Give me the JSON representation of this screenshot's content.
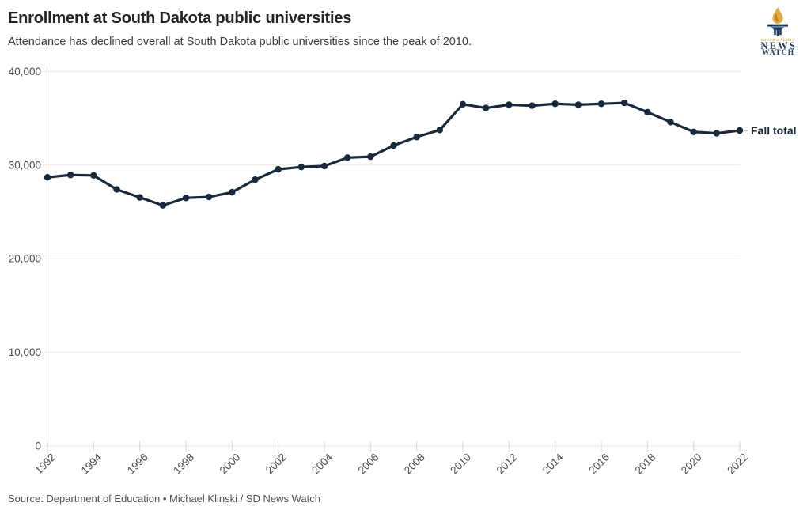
{
  "logo": {
    "tagline": "SOUTH DAKOTA",
    "name_line1": "NEWS",
    "name_line2": "WATCH"
  },
  "chart_data": {
    "type": "line",
    "title": "Enrollment at South Dakota public universities",
    "subtitle": "Attendance has declined overall at South Dakota public universities since the peak of 2010.",
    "x": [
      1992,
      1993,
      1994,
      1995,
      1996,
      1997,
      1998,
      1999,
      2000,
      2001,
      2002,
      2003,
      2004,
      2005,
      2006,
      2007,
      2008,
      2009,
      2010,
      2011,
      2012,
      2013,
      2014,
      2015,
      2016,
      2017,
      2018,
      2019,
      2020,
      2021,
      2022
    ],
    "series": [
      {
        "name": "Fall total",
        "values": [
          28700,
          28950,
          28900,
          27400,
          26550,
          25700,
          26500,
          26600,
          27100,
          28450,
          29550,
          29800,
          29900,
          30800,
          30900,
          32100,
          33000,
          33750,
          36500,
          36100,
          36450,
          36350,
          36550,
          36450,
          36550,
          36650,
          35650,
          34600,
          33550,
          33400,
          33700
        ]
      }
    ],
    "x_tick_labels": [
      "1992",
      "1994",
      "1996",
      "1998",
      "2000",
      "2002",
      "2004",
      "2006",
      "2008",
      "2010",
      "2012",
      "2014",
      "2016",
      "2018",
      "2020",
      "2022"
    ],
    "y_ticks": [
      {
        "value": 0,
        "label": "0"
      },
      {
        "value": 10000,
        "label": "10,000"
      },
      {
        "value": 20000,
        "label": "20,000"
      },
      {
        "value": 30000,
        "label": "30,000"
      },
      {
        "value": 40000,
        "label": "40,000"
      }
    ],
    "ylim": [
      0,
      40000
    ],
    "grid": "horizontal-only",
    "legend_position": "end-of-line-label",
    "marker": "circle"
  },
  "footer": {
    "source": "Source: Department of Education • Michael Klinski / SD News Watch"
  },
  "colors": {
    "line": "#17293c",
    "grid": "#e8e8e8",
    "axis": "#d9d9d9",
    "tick_text": "#4a4a4a",
    "end_dash": "#999999",
    "logo_navy": "#1d3e5e",
    "logo_gold": "#e8a93b"
  }
}
